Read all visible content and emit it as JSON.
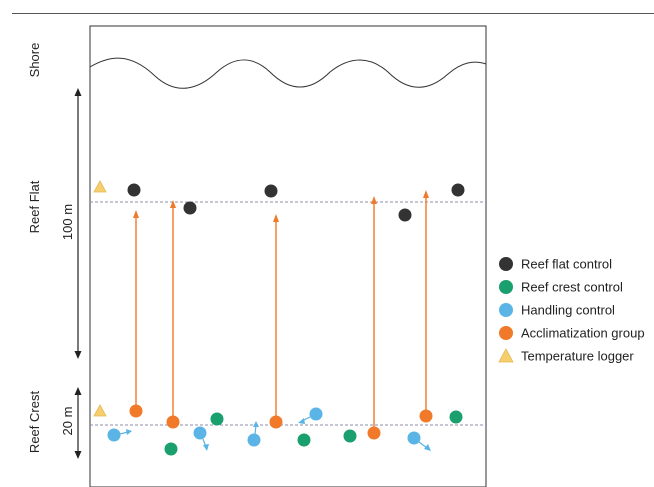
{
  "zones": {
    "shore": "Shore",
    "reef_flat": "Reef Flat",
    "reef_crest": "Reef Crest"
  },
  "scale": {
    "flat_distance": "100 m",
    "crest_distance": "20 m"
  },
  "legend": [
    {
      "key": "reef_flat_control",
      "label": "Reef flat control",
      "color": "#333333",
      "icon": "circle-icon"
    },
    {
      "key": "reef_crest_control",
      "label": "Reef crest control",
      "color": "#1aa06e",
      "icon": "circle-icon"
    },
    {
      "key": "handling_control",
      "label": "Handling control",
      "color": "#5ab4e5",
      "icon": "circle-icon"
    },
    {
      "key": "acclimatization_group",
      "label": "Acclimatization group",
      "color": "#f07a2a",
      "icon": "circle-icon"
    },
    {
      "key": "temperature_logger",
      "label": "Temperature logger",
      "color": "#f5cf6e",
      "icon": "triangle-icon"
    }
  ],
  "colors": {
    "frame": "#555555",
    "dashed_line": "#8e8ea8",
    "arrow": "#f07a2a",
    "handling_arrow": "#5ab4e5"
  }
}
